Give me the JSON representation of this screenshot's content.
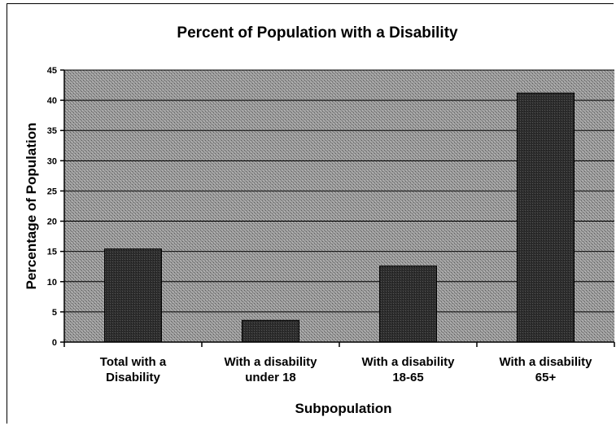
{
  "chart_data": {
    "type": "bar",
    "title": "Percent of Population with a Disability",
    "xlabel": "Subpopulation",
    "ylabel": "Percentage of Population",
    "categories": [
      [
        "Total with a",
        "Disability"
      ],
      [
        "With a disability",
        "under 18"
      ],
      [
        "With a disability",
        "18-65"
      ],
      [
        "With a disability",
        "65+"
      ]
    ],
    "values": [
      15.4,
      3.6,
      12.6,
      41.2
    ],
    "ylim": [
      0,
      45
    ],
    "yticks": [
      "0",
      "5",
      "10",
      "15",
      "20",
      "25",
      "30",
      "35",
      "40",
      "45"
    ],
    "grid": true,
    "legend": "none",
    "colors": {
      "plot_bg": "#8e8e8e",
      "bar": "#3a3a3a",
      "grid": "#000000",
      "text": "#000000"
    }
  }
}
